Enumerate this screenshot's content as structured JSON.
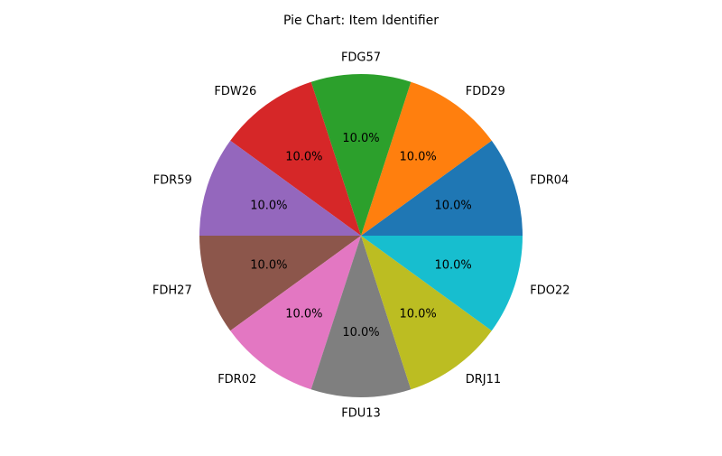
{
  "chart_data": {
    "type": "pie",
    "title": "Pie Chart: Item Identifier",
    "start_angle_deg": 0,
    "direction": "counterclockwise",
    "slices": [
      {
        "label": "FDR04",
        "value": 10.0,
        "pct_label": "10.0%",
        "color": "#1f77b4"
      },
      {
        "label": "FDD29",
        "value": 10.0,
        "pct_label": "10.0%",
        "color": "#ff7f0e"
      },
      {
        "label": "FDG57",
        "value": 10.0,
        "pct_label": "10.0%",
        "color": "#2ca02c"
      },
      {
        "label": "FDW26",
        "value": 10.0,
        "pct_label": "10.0%",
        "color": "#d62728"
      },
      {
        "label": "FDR59",
        "value": 10.0,
        "pct_label": "10.0%",
        "color": "#9467bd"
      },
      {
        "label": "FDH27",
        "value": 10.0,
        "pct_label": "10.0%",
        "color": "#8c564b"
      },
      {
        "label": "FDR02",
        "value": 10.0,
        "pct_label": "10.0%",
        "color": "#e377c2"
      },
      {
        "label": "FDU13",
        "value": 10.0,
        "pct_label": "10.0%",
        "color": "#7f7f7f"
      },
      {
        "label": "DRJ11",
        "value": 10.0,
        "pct_label": "10.0%",
        "color": "#bcbd22"
      },
      {
        "label": "FDO22",
        "value": 10.0,
        "pct_label": "10.0%",
        "color": "#17becf"
      }
    ]
  }
}
